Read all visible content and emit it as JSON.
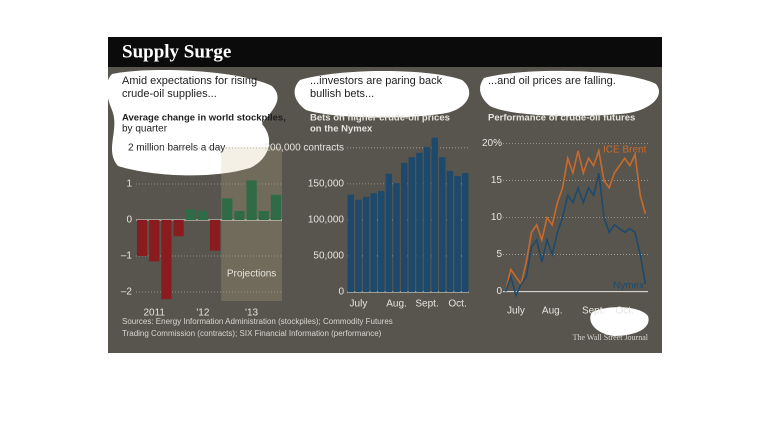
{
  "header": {
    "title": "Supply Surge"
  },
  "chart_data": [
    {
      "type": "bar",
      "headline": [
        "Amid expectations for rising",
        "crude-oil supplies..."
      ],
      "subtitle": [
        "Average change in world stockpiles,"
      ],
      "note": "by quarter",
      "categories": [
        null,
        "2011",
        null,
        null,
        null,
        "'12",
        null,
        null,
        null,
        "'13",
        null,
        null
      ],
      "values": [
        -1.0,
        -1.15,
        -2.2,
        -0.45,
        0.3,
        0.25,
        -0.85,
        0.6,
        0.25,
        1.1,
        0.25,
        0.7
      ],
      "color_negative": "#8a1c1f",
      "color_positive": "#2f6b47",
      "ylim": [
        -2.25,
        2.25
      ],
      "yticks": [
        {
          "value": -2,
          "label": "–2"
        },
        {
          "value": -1,
          "label": "–1"
        },
        0,
        1,
        {
          "value": 2,
          "label": "2 million barrels a day"
        }
      ],
      "grid": true,
      "shade": {
        "label": "Projections",
        "from": 7
      }
    },
    {
      "type": "bar",
      "headline": [
        "...investors are paring back",
        "bullish bets..."
      ],
      "subtitle": [
        "Bets on higher crude-oil prices",
        "on the Nymex"
      ],
      "categories": [
        null,
        "July",
        null,
        null,
        null,
        null,
        "Aug.",
        null,
        null,
        null,
        "Sept.",
        null,
        null,
        null,
        "Oct.",
        null
      ],
      "values": [
        135000,
        128000,
        132000,
        137000,
        140000,
        164000,
        151000,
        179000,
        187000,
        193000,
        201000,
        214000,
        187000,
        168000,
        161000,
        165000
      ],
      "color": "#1d4a6c",
      "ylim": [
        0,
        215000
      ],
      "yticks": [
        0,
        {
          "value": 50000,
          "label": "50,000"
        },
        {
          "value": 100000,
          "label": "100,000"
        },
        {
          "value": 150000,
          "label": "150,000"
        },
        {
          "value": 200000,
          "label": "200,000 contracts"
        }
      ],
      "grid": true
    },
    {
      "type": "line",
      "headline": [
        "...and oil prices are falling."
      ],
      "subtitle": [
        "Performance of crude-oil futures"
      ],
      "categories": [
        null,
        null,
        "July",
        null,
        null,
        null,
        null,
        null,
        null,
        "Aug.",
        null,
        null,
        null,
        null,
        null,
        null,
        null,
        "Sept.",
        null,
        null,
        null,
        null,
        null,
        "Oct.",
        null,
        null,
        null,
        null
      ],
      "series": [
        {
          "name": "ICE Brent",
          "color": "#c96a2c",
          "values": [
            0,
            3,
            2,
            1,
            4,
            8,
            9,
            7,
            10,
            9,
            12,
            14,
            18,
            16,
            19,
            16,
            18,
            17,
            19,
            15,
            14,
            16,
            17,
            18,
            17,
            18.5,
            13,
            10.5
          ]
        },
        {
          "name": "Nymex",
          "color": "#1d4a6c",
          "values": [
            0,
            2,
            -0.5,
            1,
            2,
            6,
            7,
            4,
            7,
            5,
            8,
            10,
            13,
            12,
            14,
            12,
            14,
            13,
            16,
            10,
            8,
            9,
            8.5,
            8,
            8.5,
            8,
            5,
            1
          ]
        }
      ],
      "ylim": [
        -1,
        21
      ],
      "yticks": [
        0,
        5,
        10,
        15,
        {
          "value": 20,
          "label": "20%"
        }
      ],
      "grid": true
    }
  ],
  "footer": {
    "sources": [
      "Sources: Energy Information Administration (stockpiles); Commodity Futures",
      "Trading Commission (contracts); SIX Financial Information (performance)"
    ],
    "credit": "The Wall Street Journal"
  }
}
